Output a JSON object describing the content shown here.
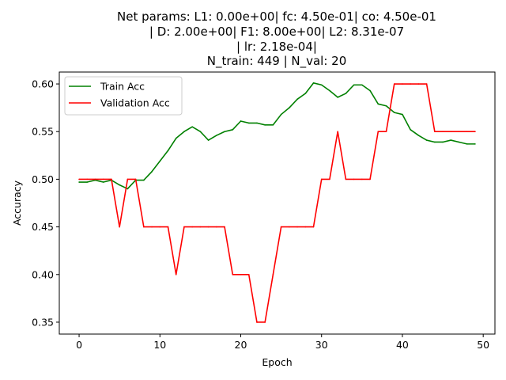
{
  "chart_data": {
    "type": "line",
    "title_lines": [
      "Net params: L1: 0.00e+00| fc: 4.50e-01| co: 4.50e-01",
      "| D: 2.00e+00| F1: 8.00e+00| L2: 8.31e-07",
      "| lr: 2.18e-04|",
      "N_train: 449 | N_val: 20"
    ],
    "xlabel": "Epoch",
    "ylabel": "Accuracy",
    "xlim": [
      -2.45,
      51.45
    ],
    "ylim": [
      0.3375,
      0.6125
    ],
    "xticks": [
      0,
      10,
      20,
      30,
      40,
      50
    ],
    "yticks": [
      0.35,
      0.4,
      0.45,
      0.5,
      0.55,
      0.6
    ],
    "grid": false,
    "legend_position": "upper-left",
    "x": [
      0,
      1,
      2,
      3,
      4,
      5,
      6,
      7,
      8,
      9,
      10,
      11,
      12,
      13,
      14,
      15,
      16,
      17,
      18,
      19,
      20,
      21,
      22,
      23,
      24,
      25,
      26,
      27,
      28,
      29,
      30,
      31,
      32,
      33,
      34,
      35,
      36,
      37,
      38,
      39,
      40,
      41,
      42,
      43,
      44,
      45,
      46,
      47,
      48,
      49
    ],
    "series": [
      {
        "name": "Train Acc",
        "color": "#008000",
        "values": [
          0.497,
          0.497,
          0.499,
          0.497,
          0.499,
          0.494,
          0.49,
          0.499,
          0.499,
          0.508,
          0.519,
          0.53,
          0.543,
          0.55,
          0.555,
          0.55,
          0.541,
          0.546,
          0.55,
          0.552,
          0.561,
          0.559,
          0.559,
          0.557,
          0.557,
          0.568,
          0.575,
          0.584,
          0.59,
          0.601,
          0.599,
          0.593,
          0.586,
          0.59,
          0.599,
          0.599,
          0.593,
          0.579,
          0.577,
          0.57,
          0.568,
          0.552,
          0.546,
          0.541,
          0.539,
          0.539,
          0.541,
          0.539,
          0.537,
          0.537
        ]
      },
      {
        "name": "Validation Acc",
        "color": "#ff0000",
        "values": [
          0.5,
          0.5,
          0.5,
          0.5,
          0.5,
          0.45,
          0.5,
          0.5,
          0.45,
          0.45,
          0.45,
          0.45,
          0.4,
          0.45,
          0.45,
          0.45,
          0.45,
          0.45,
          0.45,
          0.4,
          0.4,
          0.4,
          0.35,
          0.35,
          0.4,
          0.45,
          0.45,
          0.45,
          0.45,
          0.45,
          0.5,
          0.5,
          0.55,
          0.5,
          0.5,
          0.5,
          0.5,
          0.55,
          0.55,
          0.6,
          0.6,
          0.6,
          0.6,
          0.6,
          0.55,
          0.55,
          0.55,
          0.55,
          0.55,
          0.55
        ]
      }
    ]
  }
}
